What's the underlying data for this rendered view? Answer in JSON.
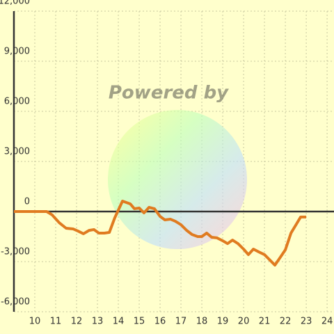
{
  "chart_data": {
    "type": "line",
    "watermark": "Powered by",
    "x": [
      9.0,
      10.57,
      10.83,
      11.17,
      11.5,
      11.83,
      12.07,
      12.33,
      12.6,
      12.83,
      13.07,
      13.33,
      13.57,
      13.83,
      14.2,
      14.57,
      14.77,
      15.0,
      15.23,
      15.47,
      15.73,
      16.0,
      16.23,
      16.5,
      16.73,
      17.0,
      17.27,
      17.53,
      17.8,
      18.0,
      18.23,
      18.47,
      18.73,
      19.0,
      19.23,
      19.47,
      19.73,
      20.0,
      20.23,
      20.47,
      20.73,
      21.0,
      21.27,
      21.5,
      21.73,
      22.0,
      22.27,
      22.53,
      22.73,
      23.0
    ],
    "values": [
      0,
      0,
      -200,
      -670,
      -1000,
      -1040,
      -1170,
      -1330,
      -1130,
      -1080,
      -1290,
      -1290,
      -1250,
      -375,
      625,
      460,
      170,
      210,
      -80,
      250,
      170,
      -290,
      -500,
      -460,
      -580,
      -790,
      -1125,
      -1375,
      -1500,
      -1500,
      -1290,
      -1540,
      -1580,
      -1750,
      -1920,
      -1710,
      -1920,
      -2250,
      -2580,
      -2250,
      -2420,
      -2580,
      -2920,
      -3210,
      -2790,
      -2290,
      -1290,
      -750,
      -330,
      -330
    ],
    "color": "#e07b20",
    "xlim": [
      9,
      24.33
    ],
    "ylim": [
      -6000,
      12000
    ],
    "xticks": [
      10,
      11,
      12,
      13,
      14,
      15,
      16,
      17,
      18,
      19,
      20,
      21,
      22,
      23,
      24
    ],
    "yticks": [
      {
        "value": -6000,
        "label": "-6,000"
      },
      {
        "value": -3000,
        "label": "-3,000"
      },
      0,
      {
        "value": 3000,
        "label": "3,000"
      },
      {
        "value": 6000,
        "label": "6,000"
      },
      {
        "value": 9000,
        "label": "9,000"
      },
      {
        "value": 12000,
        "label": "12,000"
      }
    ],
    "grid": true
  }
}
